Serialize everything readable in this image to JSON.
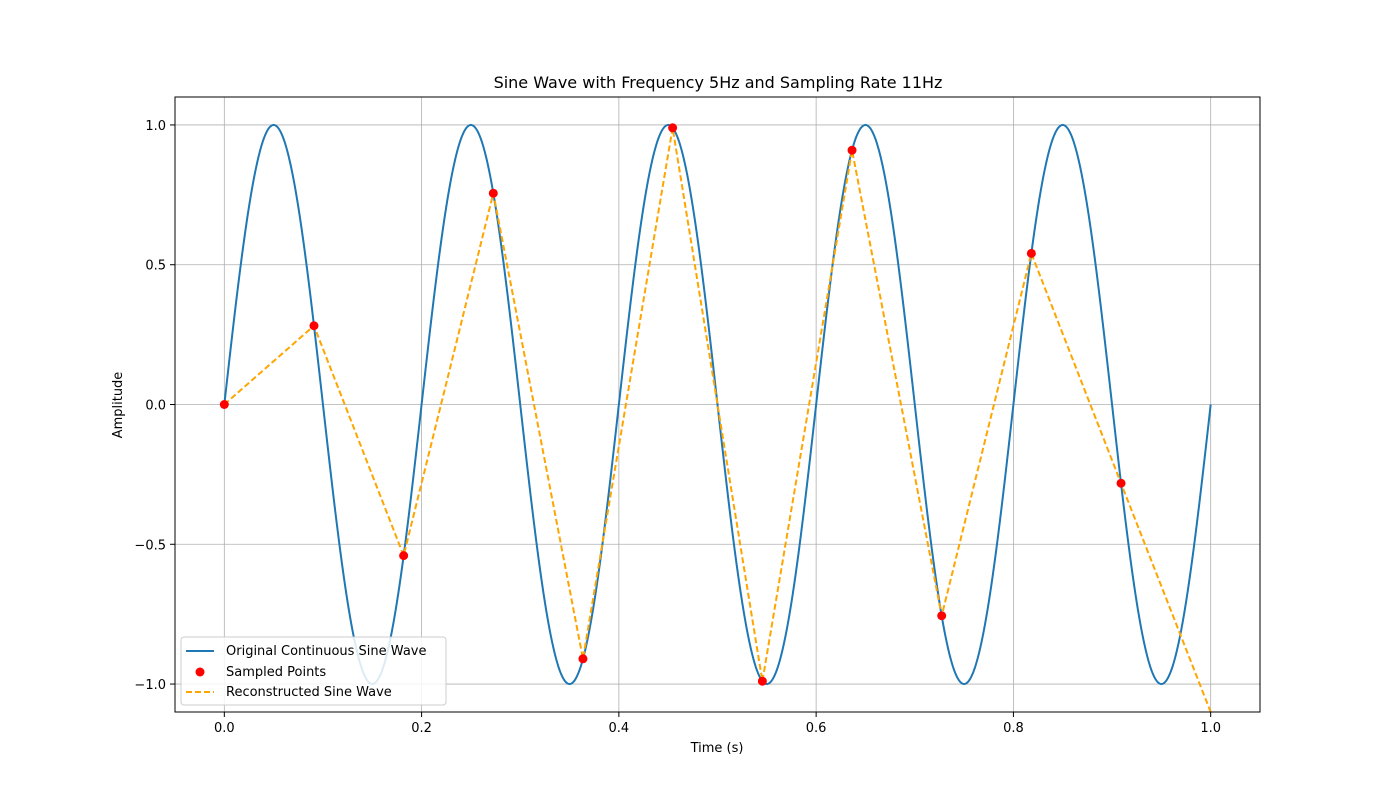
{
  "chart_data": {
    "type": "line",
    "title": "Sine Wave with Frequency 5Hz and Sampling Rate 11Hz",
    "xlabel": "Time (s)",
    "ylabel": "Amplitude",
    "xlim": [
      -0.05,
      1.05
    ],
    "ylim": [
      -1.1,
      1.1
    ],
    "xticks": [
      0.0,
      0.2,
      0.4,
      0.6,
      0.8,
      1.0
    ],
    "xtick_labels": [
      "0.0",
      "0.2",
      "0.4",
      "0.6",
      "0.8",
      "1.0"
    ],
    "yticks": [
      -1.0,
      -0.5,
      0.0,
      0.5,
      1.0
    ],
    "ytick_labels": [
      "−1.0",
      "−0.5",
      "0.0",
      "0.5",
      "1.0"
    ],
    "grid": true,
    "legend_position": "lower-left",
    "series": [
      {
        "name": "Original Continuous Sine Wave",
        "kind": "line",
        "style": "solid",
        "color": "#1f77b4",
        "function": "sin(2*pi*5*t)",
        "t_range": [
          0,
          1
        ]
      },
      {
        "name": "Sampled Points",
        "kind": "scatter",
        "color": "#ff0000",
        "x": [
          0.0,
          0.0909,
          0.1818,
          0.2727,
          0.3636,
          0.4545,
          0.5455,
          0.6364,
          0.7273,
          0.8182,
          0.9091
        ],
        "y": [
          0.0,
          0.2817,
          -0.5406,
          0.7557,
          -0.9096,
          0.9898,
          -0.9898,
          0.9096,
          -0.7557,
          0.5406,
          -0.2817
        ]
      },
      {
        "name": "Reconstructed Sine Wave",
        "kind": "line",
        "style": "dashed",
        "color": "#ffa500",
        "x": [
          0.0,
          0.0909,
          0.1818,
          0.2727,
          0.3636,
          0.4545,
          0.5455,
          0.6364,
          0.7273,
          0.8182,
          0.9091,
          1.0
        ],
        "y": [
          0.0,
          0.2817,
          -0.5406,
          0.7557,
          -0.9096,
          0.9898,
          -0.9898,
          0.9096,
          -0.7557,
          0.5406,
          -0.2817,
          -1.1
        ]
      }
    ]
  }
}
